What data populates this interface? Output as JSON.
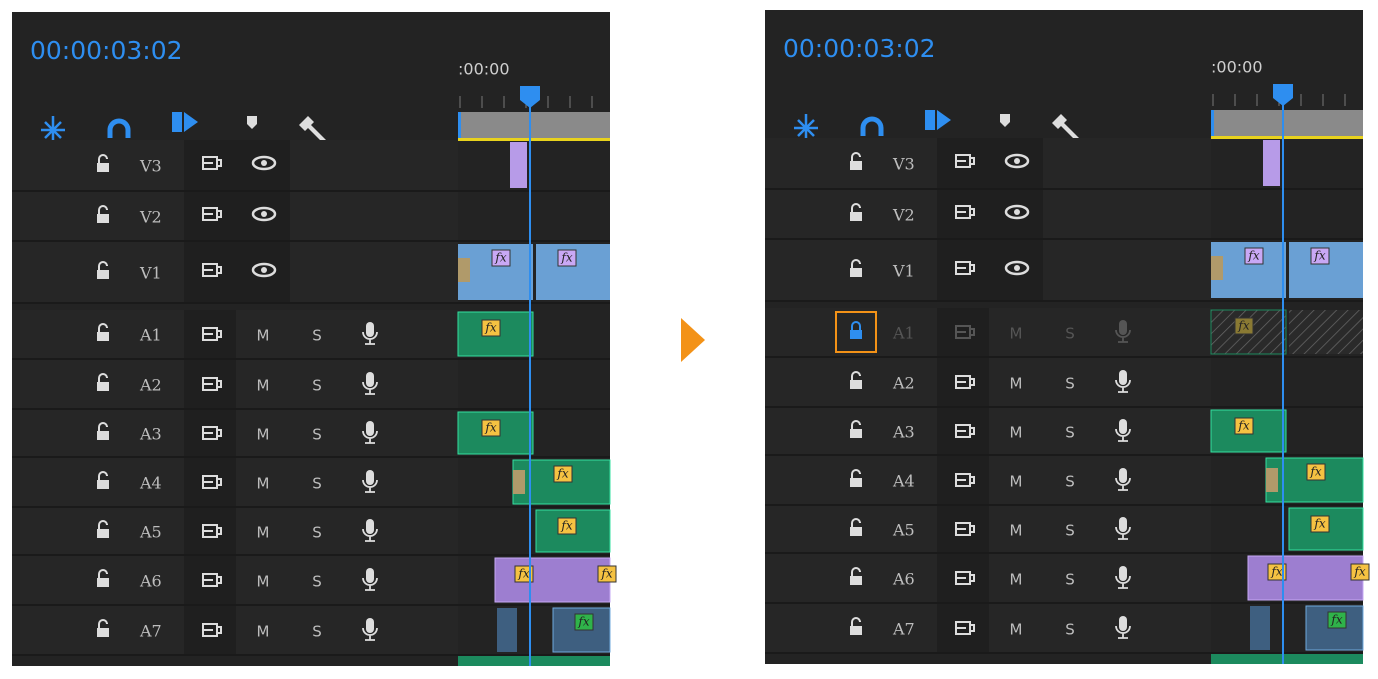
{
  "panels": [
    {
      "timecode": "00:00:03:02",
      "ruler_label": ":00:00",
      "clip_badge": "fx",
      "video_tracks": [
        {
          "name": "V3"
        },
        {
          "name": "V2"
        },
        {
          "name": "V1"
        }
      ],
      "audio_tracks": [
        {
          "name": "A1",
          "mute": "M",
          "solo": "S",
          "locked": false
        },
        {
          "name": "A2",
          "mute": "M",
          "solo": "S"
        },
        {
          "name": "A3",
          "mute": "M",
          "solo": "S"
        },
        {
          "name": "A4",
          "mute": "M",
          "solo": "S"
        },
        {
          "name": "A5",
          "mute": "M",
          "solo": "S"
        },
        {
          "name": "A6",
          "mute": "M",
          "solo": "S"
        },
        {
          "name": "A7",
          "mute": "M",
          "solo": "S"
        }
      ]
    },
    {
      "timecode": "00:00:03:02",
      "ruler_label": ":00:00",
      "clip_badge": "fx",
      "video_tracks": [
        {
          "name": "V3"
        },
        {
          "name": "V2"
        },
        {
          "name": "V1"
        }
      ],
      "audio_tracks": [
        {
          "name": "A1",
          "mute": "M",
          "solo": "S",
          "locked": true
        },
        {
          "name": "A2",
          "mute": "M",
          "solo": "S"
        },
        {
          "name": "A3",
          "mute": "M",
          "solo": "S"
        },
        {
          "name": "A4",
          "mute": "M",
          "solo": "S"
        },
        {
          "name": "A5",
          "mute": "M",
          "solo": "S"
        },
        {
          "name": "A6",
          "mute": "M",
          "solo": "S"
        },
        {
          "name": "A7",
          "mute": "M",
          "solo": "S"
        }
      ]
    }
  ]
}
